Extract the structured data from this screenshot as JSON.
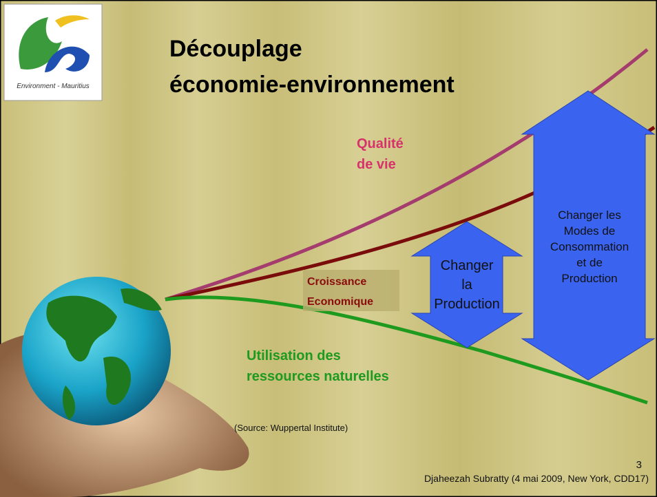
{
  "logo": {
    "caption": "Environment - Mauritius"
  },
  "title": {
    "lines": [
      "Découplage",
      "économie-environnement"
    ]
  },
  "labels": {
    "quality": [
      "Qualité",
      "de vie"
    ],
    "growth": [
      "Croissance",
      "Economique"
    ],
    "resources": [
      "Utilisation des",
      "ressources naturelles"
    ]
  },
  "arrows": [
    {
      "lines": [
        "Changer",
        "la",
        "Production"
      ]
    },
    {
      "lines": [
        "Changer les",
        "Modes de",
        "Consommation",
        "et de",
        "Production"
      ]
    }
  ],
  "source": "(Source: Wuppertal Institute)",
  "footer": {
    "page": "3",
    "author": "Djaheezah Subratty (4 mai 2009, New York, CDD17)"
  }
}
